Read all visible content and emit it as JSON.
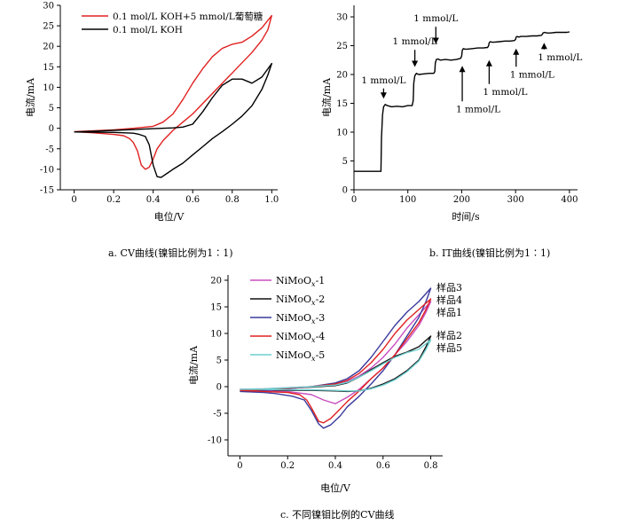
{
  "captions": {
    "a": "a. CV曲线(镍钼比例为1∶1)",
    "b": "b. IT曲线(镍钼比例为1∶1)",
    "c": "c. 不同镍钼比例的CV曲线"
  },
  "chart_data": [
    {
      "id": "a",
      "type": "line",
      "title": "",
      "xlabel": "电位/V",
      "ylabel": "电流/mA",
      "xlim": [
        -0.07,
        1.03
      ],
      "ylim": [
        -15,
        30
      ],
      "xticks": [
        0,
        0.2,
        0.4,
        0.6,
        0.8,
        1.0
      ],
      "xtick_labels": [
        "0",
        "0.2",
        "0.4",
        "0.6",
        "0.8",
        "1.0"
      ],
      "yticks": [
        -15,
        -10,
        -5,
        0,
        5,
        10,
        15,
        20,
        25,
        30
      ],
      "ytick_labels": [
        "-15",
        "-10",
        "-5",
        "0",
        "5",
        "10",
        "15",
        "20",
        "25",
        "30"
      ],
      "grid": false,
      "legend": "top-left",
      "series": [
        {
          "name": "0.1 mol/L KOH+5 mmol/L葡萄糖",
          "color": "#e02020",
          "x": [
            0,
            0.1,
            0.2,
            0.3,
            0.4,
            0.45,
            0.5,
            0.55,
            0.6,
            0.65,
            0.7,
            0.75,
            0.8,
            0.85,
            0.9,
            0.95,
            1.0,
            0.98,
            0.95,
            0.9,
            0.85,
            0.8,
            0.75,
            0.7,
            0.65,
            0.6,
            0.55,
            0.5,
            0.45,
            0.42,
            0.4,
            0.38,
            0.36,
            0.34,
            0.32,
            0.3,
            0.28,
            0.25,
            0.2,
            0.1,
            0
          ],
          "y": [
            -0.8,
            -0.6,
            -0.4,
            0,
            0.5,
            1.5,
            3.5,
            7,
            11,
            14.5,
            17.5,
            19.5,
            20.5,
            21,
            22.5,
            24.5,
            27.5,
            24,
            21.5,
            18.5,
            16,
            13.5,
            11,
            8.5,
            6,
            3.5,
            1.5,
            -0.5,
            -3,
            -5,
            -7.5,
            -9.5,
            -10,
            -9,
            -5.5,
            -3.5,
            -2.5,
            -1.8,
            -1.5,
            -1.1,
            -0.8
          ]
        },
        {
          "name": "0.1 mol/L KOH",
          "color": "#000000",
          "x": [
            0,
            0.1,
            0.2,
            0.3,
            0.4,
            0.5,
            0.55,
            0.6,
            0.65,
            0.7,
            0.75,
            0.8,
            0.85,
            0.9,
            0.95,
            1.0,
            0.98,
            0.95,
            0.9,
            0.85,
            0.8,
            0.75,
            0.7,
            0.65,
            0.6,
            0.55,
            0.5,
            0.47,
            0.44,
            0.42,
            0.4,
            0.38,
            0.36,
            0.33,
            0.3,
            0.2,
            0.1,
            0
          ],
          "y": [
            -0.9,
            -0.7,
            -0.5,
            -0.3,
            -0.1,
            0.1,
            0.3,
            1.0,
            4.0,
            7.5,
            10.5,
            12,
            12,
            11,
            12.5,
            15.8,
            13,
            9.5,
            5.5,
            3,
            1,
            -0.8,
            -2.5,
            -4.5,
            -6.5,
            -8.5,
            -10,
            -11,
            -12,
            -11.8,
            -9,
            -4,
            -2,
            -1.5,
            -1.2,
            -1.0,
            -0.95,
            -0.9
          ]
        }
      ]
    },
    {
      "id": "b",
      "type": "line",
      "title": "",
      "xlabel": "时间/s",
      "ylabel": "电流/mA",
      "xlim": [
        0,
        415
      ],
      "ylim": [
        0,
        32
      ],
      "xticks": [
        0,
        100,
        200,
        300,
        400
      ],
      "xtick_labels": [
        "0",
        "100",
        "200",
        "300",
        "400"
      ],
      "yticks": [
        0,
        5,
        10,
        15,
        20,
        25,
        30
      ],
      "ytick_labels": [
        "0",
        "5",
        "10",
        "15",
        "20",
        "25",
        "30"
      ],
      "grid": false,
      "legend": "none",
      "series": [
        {
          "name": "",
          "color": "#000000",
          "x": [
            0,
            50,
            51,
            53,
            55,
            58,
            62,
            70,
            80,
            90,
            100,
            108,
            110,
            111,
            113,
            116,
            120,
            130,
            140,
            148,
            150,
            151,
            153,
            156,
            160,
            170,
            180,
            190,
            198,
            200,
            201,
            203,
            206,
            210,
            220,
            230,
            240,
            248,
            250,
            251,
            253,
            256,
            260,
            270,
            280,
            290,
            298,
            300,
            301,
            303,
            306,
            310,
            320,
            330,
            340,
            348,
            350,
            351,
            354,
            358,
            365,
            375,
            385,
            395,
            400
          ],
          "y": [
            3.2,
            3.2,
            9,
            13,
            14.4,
            14.8,
            14.6,
            14.4,
            14.5,
            14.4,
            14.6,
            14.6,
            15.5,
            18.5,
            19.8,
            20.2,
            20,
            20.1,
            20.2,
            20.2,
            20.5,
            22,
            22.6,
            22.7,
            22.5,
            22.6,
            22.5,
            22.6,
            22.8,
            23.2,
            24.2,
            24.5,
            24.4,
            24.4,
            24.5,
            24.6,
            24.6,
            24.7,
            25,
            25.5,
            25.7,
            25.6,
            25.6,
            25.7,
            25.8,
            25.8,
            25.9,
            26.1,
            26.5,
            26.6,
            26.5,
            26.6,
            26.6,
            26.7,
            26.7,
            26.8,
            27,
            27.2,
            27.3,
            27.2,
            27.2,
            27.3,
            27.3,
            27.3,
            27.4
          ]
        }
      ],
      "annotations": [
        {
          "text": "1 mmol/L",
          "x": 55,
          "y": 18.5,
          "arrow_to": 15.8,
          "position": "above"
        },
        {
          "text": "1 mmol/L",
          "x": 113,
          "y": 25.2,
          "arrow_to": 21.3,
          "position": "above"
        },
        {
          "text": "1 mmol/L",
          "x": 152,
          "y": 29.2,
          "arrow_to": 25.3,
          "position": "above"
        },
        {
          "text": "1 mmol/L",
          "x": 201,
          "y": 13.5,
          "arrow_to": 21.5,
          "position": "below"
        },
        {
          "text": "1 mmol/L",
          "x": 251,
          "y": 16.5,
          "arrow_to": 22.5,
          "position": "below"
        },
        {
          "text": "1 mmol/L",
          "x": 301,
          "y": 19.5,
          "arrow_to": 24.5,
          "position": "below"
        },
        {
          "text": "1 mmol/L",
          "x": 353,
          "y": 22.5,
          "arrow_to": 25.5,
          "position": "below"
        }
      ]
    },
    {
      "id": "c",
      "type": "line",
      "title": "",
      "xlabel": "电位/V",
      "ylabel": "电流/mA",
      "xlim": [
        -0.05,
        0.85
      ],
      "ylim": [
        -13,
        21
      ],
      "xticks": [
        0,
        0.2,
        0.4,
        0.6,
        0.8
      ],
      "xtick_labels": [
        "0",
        "0.2",
        "0.4",
        "0.6",
        "0.8"
      ],
      "yticks": [
        -10,
        -5,
        0,
        5,
        10,
        15,
        20
      ],
      "ytick_labels": [
        "-10",
        "-5",
        "0",
        "5",
        "10",
        "15",
        "20"
      ],
      "grid": false,
      "legend": "top-left",
      "series": [
        {
          "name": "NiMoOx-1",
          "color": "#c94fc0",
          "x": [
            0,
            0.1,
            0.2,
            0.3,
            0.4,
            0.45,
            0.5,
            0.55,
            0.6,
            0.65,
            0.7,
            0.75,
            0.8,
            0.78,
            0.75,
            0.7,
            0.65,
            0.6,
            0.55,
            0.5,
            0.45,
            0.4,
            0.35,
            0.3,
            0.2,
            0.1,
            0
          ],
          "y": [
            -0.5,
            -0.4,
            -0.2,
            0,
            0.5,
            1,
            2,
            3.5,
            5.5,
            8,
            11,
            13.5,
            16,
            14,
            11.5,
            8.5,
            6,
            3.5,
            1.5,
            -0.5,
            -2,
            -3.2,
            -2.5,
            -1.5,
            -0.9,
            -0.7,
            -0.5
          ]
        },
        {
          "name": "NiMoOx-2",
          "color": "#111111",
          "x": [
            0,
            0.1,
            0.2,
            0.3,
            0.4,
            0.45,
            0.5,
            0.55,
            0.6,
            0.65,
            0.7,
            0.75,
            0.8,
            0.78,
            0.75,
            0.7,
            0.65,
            0.6,
            0.55,
            0.5,
            0.45,
            0.4,
            0.3,
            0.2,
            0.1,
            0
          ],
          "y": [
            -0.6,
            -0.5,
            -0.3,
            -0.1,
            0.2,
            0.7,
            1.8,
            3.2,
            4.5,
            5.7,
            6.5,
            7.5,
            9.5,
            7.5,
            5,
            3,
            1.5,
            0.5,
            -0.3,
            -0.8,
            -0.9,
            -0.8,
            -0.7,
            -0.7,
            -0.6,
            -0.6
          ]
        },
        {
          "name": "NiMoOx-3",
          "color": "#3a3a9c",
          "x": [
            0,
            0.1,
            0.2,
            0.3,
            0.4,
            0.45,
            0.5,
            0.55,
            0.6,
            0.65,
            0.7,
            0.75,
            0.8,
            0.78,
            0.75,
            0.7,
            0.65,
            0.6,
            0.55,
            0.5,
            0.45,
            0.42,
            0.38,
            0.35,
            0.33,
            0.3,
            0.27,
            0.22,
            0.15,
            0.1,
            0
          ],
          "y": [
            -0.9,
            -0.7,
            -0.4,
            0,
            0.7,
            1.5,
            3,
            5.5,
            8.5,
            11.5,
            14,
            16,
            18.5,
            16,
            13,
            9.5,
            6,
            3,
            0.5,
            -1.8,
            -3.8,
            -5.5,
            -7.2,
            -7.8,
            -7,
            -4.5,
            -2.5,
            -1.8,
            -1.3,
            -1.1,
            -0.9
          ]
        },
        {
          "name": "NiMoOx-4",
          "color": "#e02020",
          "x": [
            0,
            0.1,
            0.2,
            0.3,
            0.4,
            0.45,
            0.5,
            0.55,
            0.6,
            0.65,
            0.7,
            0.75,
            0.8,
            0.78,
            0.75,
            0.7,
            0.65,
            0.6,
            0.55,
            0.5,
            0.45,
            0.42,
            0.38,
            0.35,
            0.33,
            0.3,
            0.28,
            0.25,
            0.2,
            0.1,
            0
          ],
          "y": [
            -0.7,
            -0.5,
            -0.3,
            0,
            0.5,
            1.2,
            2.5,
            4.5,
            7,
            10,
            12.5,
            14.5,
            16.5,
            14.5,
            12,
            9,
            6,
            3.5,
            1.5,
            -0.8,
            -2.8,
            -4.2,
            -6,
            -6.8,
            -6.5,
            -4,
            -2.5,
            -1.5,
            -1.1,
            -0.9,
            -0.7
          ]
        },
        {
          "name": "NiMoOx-5",
          "color": "#6fcfcf",
          "x": [
            0,
            0.1,
            0.2,
            0.3,
            0.4,
            0.45,
            0.5,
            0.55,
            0.6,
            0.65,
            0.7,
            0.75,
            0.8,
            0.78,
            0.75,
            0.7,
            0.65,
            0.6,
            0.55,
            0.5,
            0.45,
            0.4,
            0.3,
            0.2,
            0.1,
            0
          ],
          "y": [
            -0.5,
            -0.4,
            -0.2,
            0,
            0.3,
            0.8,
            1.8,
            3,
            4.3,
            5.5,
            6.4,
            7,
            8.8,
            7,
            4.8,
            2.8,
            1.3,
            0.3,
            -0.4,
            -0.8,
            -0.8,
            -0.7,
            -0.6,
            -0.6,
            -0.5,
            -0.5
          ]
        }
      ],
      "sample_labels": [
        "样品3",
        "样品4",
        "样品1",
        "样品2",
        "样品5"
      ]
    }
  ]
}
